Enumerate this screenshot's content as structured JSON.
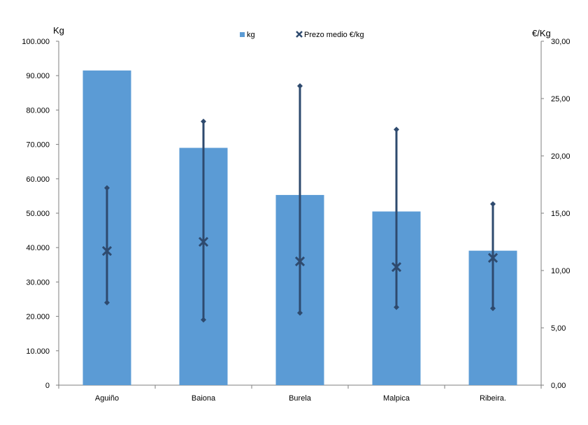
{
  "chart_data": {
    "type": "bar",
    "categories": [
      "Aguiño",
      "Baiona",
      "Burela",
      "Malpica",
      "Ribeira."
    ],
    "y_left_label": "Kg",
    "y_right_label": "€/Kg",
    "y_left_range": [
      0,
      100000
    ],
    "y_left_ticks": [
      "0",
      "10.000",
      "20.000",
      "30.000",
      "40.000",
      "50.000",
      "60.000",
      "70.000",
      "80.000",
      "90.000",
      "100.000"
    ],
    "y_right_range": [
      0,
      30
    ],
    "y_right_ticks": [
      "0,00",
      "5,00",
      "10,00",
      "15,00",
      "20,00",
      "25,00",
      "30,00"
    ],
    "grid": false,
    "legend_position": "top-center",
    "series": [
      {
        "name": "kg",
        "type": "bar",
        "axis": "left",
        "color": "#5b9bd5",
        "values": [
          91500,
          69000,
          55300,
          50500,
          39100
        ]
      },
      {
        "name": "Prezo medio €/kg",
        "type": "scatter",
        "axis": "right",
        "color": "#2e4a6e",
        "marker": "x",
        "values": [
          11.7,
          12.5,
          10.8,
          10.3,
          11.1
        ],
        "error_high": [
          17.2,
          23.0,
          26.1,
          22.3,
          15.8
        ],
        "error_low": [
          7.2,
          5.7,
          6.3,
          6.8,
          6.7
        ]
      }
    ]
  }
}
